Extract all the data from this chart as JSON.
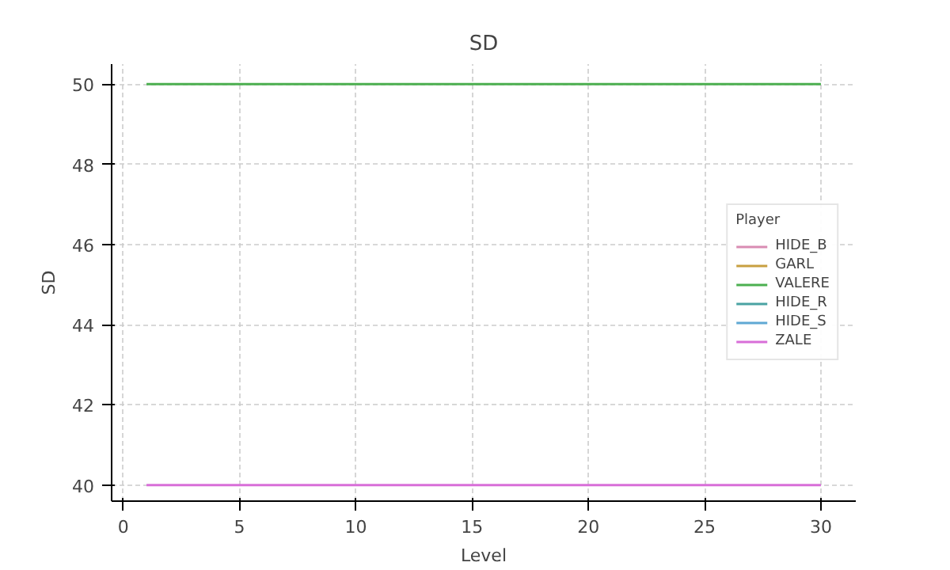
{
  "chart_data": {
    "type": "line",
    "title": "SD",
    "xlabel": "Level",
    "ylabel": "SD",
    "legend_title": "Player",
    "x": [
      1,
      30
    ],
    "series": [
      {
        "name": "HIDE_B",
        "color": "#d98cb3",
        "values": [
          null,
          null
        ]
      },
      {
        "name": "GARL",
        "color": "#c8a040",
        "values": [
          null,
          null
        ]
      },
      {
        "name": "VALERE",
        "color": "#4caf50",
        "values": [
          50,
          50
        ]
      },
      {
        "name": "HIDE_R",
        "color": "#4aa3a3",
        "values": [
          null,
          null
        ]
      },
      {
        "name": "HIDE_S",
        "color": "#5fa8d3",
        "values": [
          null,
          null
        ]
      },
      {
        "name": "ZALE",
        "color": "#d86ed8",
        "values": [
          40,
          40
        ]
      }
    ],
    "xlim": [
      -0.5,
      31.5
    ],
    "ylim": [
      39.6,
      50.5
    ],
    "xticks": [
      0,
      5,
      10,
      15,
      20,
      25,
      30
    ],
    "yticks": [
      40,
      42,
      44,
      46,
      48,
      50
    ],
    "grid": true,
    "legend": "right",
    "marker": "none",
    "line_style": "solid"
  }
}
